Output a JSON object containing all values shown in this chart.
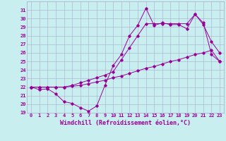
{
  "xlabel": "Windchill (Refroidissement éolien,°C)",
  "bg_color": "#c8eef0",
  "grid_color": "#aaaacc",
  "line_color": "#990099",
  "x": [
    0,
    1,
    2,
    3,
    4,
    5,
    6,
    7,
    8,
    9,
    10,
    11,
    12,
    13,
    14,
    15,
    16,
    17,
    18,
    19,
    20,
    21,
    22,
    23
  ],
  "series1": [
    22,
    21.7,
    21.8,
    21.2,
    20.3,
    20.1,
    19.6,
    19.2,
    19.8,
    22.2,
    24.5,
    25.8,
    28.0,
    29.2,
    31.2,
    29.2,
    29.5,
    29.3,
    29.3,
    28.8,
    30.5,
    29.3,
    27.3,
    26.0
  ],
  "series2": [
    22,
    22,
    22,
    22,
    22,
    22.1,
    22.2,
    22.4,
    22.6,
    22.8,
    23.1,
    23.3,
    23.6,
    23.9,
    24.2,
    24.4,
    24.7,
    25.0,
    25.2,
    25.5,
    25.8,
    26.0,
    26.3,
    25.0
  ],
  "series3": [
    22,
    22,
    22,
    22,
    22,
    22.2,
    22.5,
    22.8,
    23.1,
    23.4,
    23.8,
    25.2,
    26.6,
    28.0,
    29.4,
    29.4,
    29.4,
    29.4,
    29.4,
    29.4,
    30.5,
    29.5,
    25.8,
    25.0
  ],
  "ylim": [
    19,
    32
  ],
  "xlim": [
    -0.5,
    23.5
  ],
  "yticks": [
    19,
    20,
    21,
    22,
    23,
    24,
    25,
    26,
    27,
    28,
    29,
    30,
    31
  ],
  "xticks": [
    0,
    1,
    2,
    3,
    4,
    5,
    6,
    7,
    8,
    9,
    10,
    11,
    12,
    13,
    14,
    15,
    16,
    17,
    18,
    19,
    20,
    21,
    22,
    23
  ],
  "font_size": 5.0,
  "xlabel_fontsize": 6.0,
  "marker_size": 1.8,
  "line_width": 0.7
}
